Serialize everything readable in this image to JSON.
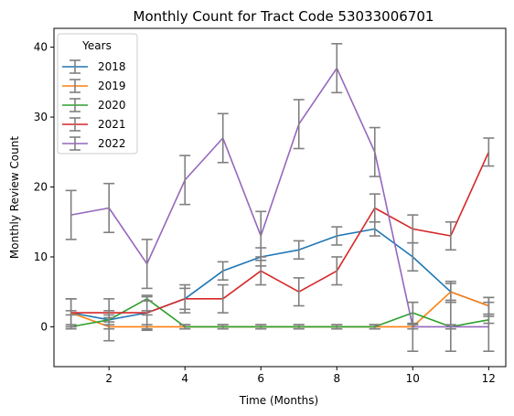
{
  "chart_data": {
    "type": "line",
    "title": "Monthly Count for Tract Code 53033006701",
    "xlabel": "Time (Months)",
    "ylabel": "Monthly Review Count",
    "xlim": [
      0.55,
      12.45
    ],
    "ylim": [
      -5.7,
      42.7
    ],
    "xticks": [
      2,
      4,
      6,
      8,
      10,
      12
    ],
    "yticks": [
      0,
      10,
      20,
      30,
      40
    ],
    "grid": false,
    "legend": {
      "title": "Years",
      "position": "top-left"
    },
    "error_bar_color": "#808080",
    "x": [
      1,
      2,
      3,
      4,
      5,
      6,
      7,
      8,
      9,
      10,
      11,
      12
    ],
    "series": [
      {
        "name": "2018",
        "color": "#1f77b4",
        "values": [
          2,
          1,
          2,
          4,
          8,
          10,
          11,
          13,
          14,
          10,
          5,
          3
        ],
        "error": [
          2,
          3,
          2.5,
          2,
          1.3,
          1.3,
          1.3,
          1.3,
          1,
          2,
          1.2,
          1.2
        ]
      },
      {
        "name": "2019",
        "color": "#ff7f0e",
        "values": [
          2,
          0,
          0,
          0,
          0,
          0,
          0,
          0,
          0,
          0,
          5,
          3
        ],
        "error": [
          2,
          0.3,
          0.3,
          0.3,
          0.3,
          0.3,
          0.3,
          0.3,
          0.3,
          0.3,
          1.5,
          1.2
        ]
      },
      {
        "name": "2020",
        "color": "#2ca02c",
        "values": [
          0,
          1,
          4,
          0,
          0,
          0,
          0,
          0,
          0,
          2,
          0,
          1
        ],
        "error": [
          0.3,
          0.3,
          0.3,
          0.3,
          0.3,
          0.3,
          0.3,
          0.3,
          0.3,
          1.5,
          0.3,
          0.5
        ]
      },
      {
        "name": "2021",
        "color": "#d62728",
        "values": [
          2,
          2,
          2,
          4,
          4,
          8,
          5,
          8,
          17,
          14,
          13,
          25
        ],
        "error": [
          0.3,
          0.3,
          0.3,
          1.5,
          2,
          2,
          2,
          2,
          2,
          2,
          2,
          2
        ]
      },
      {
        "name": "2022",
        "color": "#9467bd",
        "values": [
          16,
          17,
          9,
          21,
          27,
          13,
          29,
          37,
          25,
          0,
          0,
          0
        ],
        "error": [
          3.5,
          3.5,
          3.5,
          3.5,
          3.5,
          3.5,
          3.5,
          3.5,
          3.5,
          3.5,
          3.5,
          3.5
        ]
      }
    ]
  }
}
